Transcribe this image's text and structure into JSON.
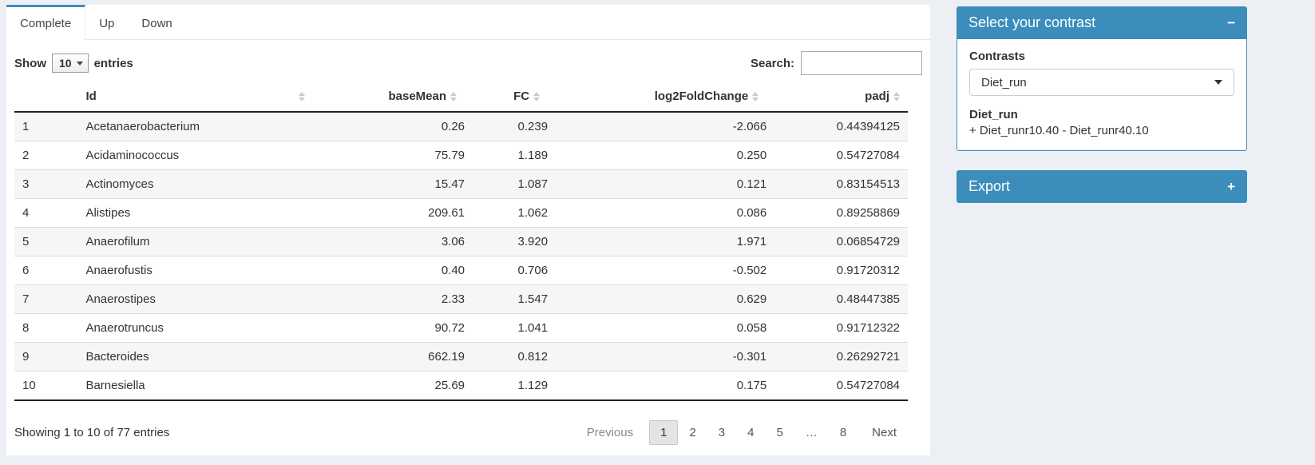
{
  "tabs": [
    {
      "label": "Complete",
      "active": true
    },
    {
      "label": "Up",
      "active": false
    },
    {
      "label": "Down",
      "active": false
    }
  ],
  "length_control": {
    "prefix": "Show",
    "value": "10",
    "suffix": "entries"
  },
  "search": {
    "label": "Search:",
    "value": ""
  },
  "table": {
    "columns": [
      "",
      "Id",
      "baseMean",
      "FC",
      "log2FoldChange",
      "padj"
    ],
    "rows": [
      {
        "n": "1",
        "id": "Acetanaerobacterium",
        "baseMean": "0.26",
        "fc": "0.239",
        "log2fc": "-2.066",
        "padj": "0.44394125"
      },
      {
        "n": "2",
        "id": "Acidaminococcus",
        "baseMean": "75.79",
        "fc": "1.189",
        "log2fc": "0.250",
        "padj": "0.54727084"
      },
      {
        "n": "3",
        "id": "Actinomyces",
        "baseMean": "15.47",
        "fc": "1.087",
        "log2fc": "0.121",
        "padj": "0.83154513"
      },
      {
        "n": "4",
        "id": "Alistipes",
        "baseMean": "209.61",
        "fc": "1.062",
        "log2fc": "0.086",
        "padj": "0.89258869"
      },
      {
        "n": "5",
        "id": "Anaerofilum",
        "baseMean": "3.06",
        "fc": "3.920",
        "log2fc": "1.971",
        "padj": "0.06854729"
      },
      {
        "n": "6",
        "id": "Anaerofustis",
        "baseMean": "0.40",
        "fc": "0.706",
        "log2fc": "-0.502",
        "padj": "0.91720312"
      },
      {
        "n": "7",
        "id": "Anaerostipes",
        "baseMean": "2.33",
        "fc": "1.547",
        "log2fc": "0.629",
        "padj": "0.48447385"
      },
      {
        "n": "8",
        "id": "Anaerotruncus",
        "baseMean": "90.72",
        "fc": "1.041",
        "log2fc": "0.058",
        "padj": "0.91712322"
      },
      {
        "n": "9",
        "id": "Bacteroides",
        "baseMean": "662.19",
        "fc": "0.812",
        "log2fc": "-0.301",
        "padj": "0.26292721"
      },
      {
        "n": "10",
        "id": "Barnesiella",
        "baseMean": "25.69",
        "fc": "1.129",
        "log2fc": "0.175",
        "padj": "0.54727084"
      }
    ],
    "info": "Showing 1 to 10 of 77 entries",
    "pagination": {
      "previous": "Previous",
      "pages": [
        "1",
        "2",
        "3",
        "4",
        "5",
        "…",
        "8"
      ],
      "active": "1",
      "next": "Next"
    }
  },
  "contrast_box": {
    "title": "Select your contrast",
    "collapse_icon": "−",
    "contrasts_label": "Contrasts",
    "selected_contrast": "Diet_run",
    "detail_title": "Diet_run",
    "detail_formula": "+ Diet_runr10.40 - Diet_runr40.10"
  },
  "export_box": {
    "title": "Export",
    "collapse_icon": "+"
  },
  "colors": {
    "accent": "#3c8dbc",
    "page_bg": "#ecf0f5",
    "stripe": "#f6f6f6"
  }
}
